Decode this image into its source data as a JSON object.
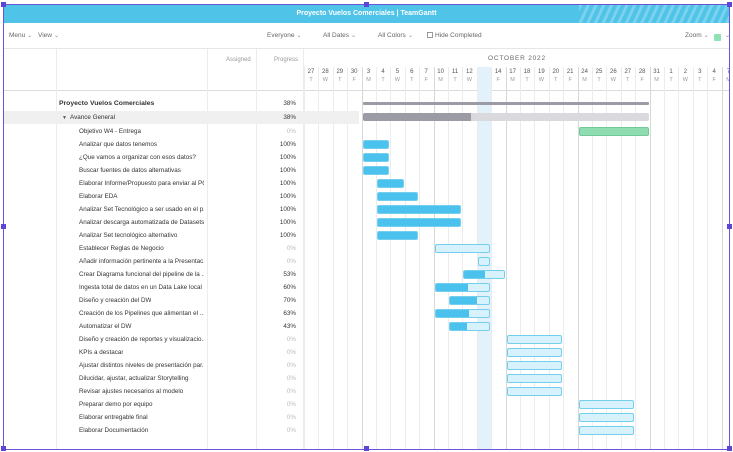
{
  "app": {
    "title": "Proyecto Vuelos Comerciales | TeamGantt"
  },
  "toolbar": {
    "menu": "Menu",
    "view": "View",
    "everyone": "Everyone",
    "all_dates": "All Dates",
    "all_colors": "All Colors",
    "hide_completed": "Hide Completed",
    "zoom": "Zoom",
    "color_swatch": "#8fdcb0"
  },
  "columns": {
    "assigned": "Assigned",
    "progress": "Progress"
  },
  "timeline": {
    "month": "OCTOBER 2022",
    "days": [
      {
        "n": "27",
        "d": "T"
      },
      {
        "n": "28",
        "d": "W"
      },
      {
        "n": "29",
        "d": "T"
      },
      {
        "n": "30",
        "d": "F"
      },
      {
        "n": "3",
        "d": "M"
      },
      {
        "n": "4",
        "d": "T"
      },
      {
        "n": "5",
        "d": "W"
      },
      {
        "n": "6",
        "d": "T"
      },
      {
        "n": "7",
        "d": "F"
      },
      {
        "n": "10",
        "d": "M"
      },
      {
        "n": "11",
        "d": "T"
      },
      {
        "n": "12",
        "d": "W"
      },
      {
        "n": "13",
        "d": "T"
      },
      {
        "n": "14",
        "d": "F"
      },
      {
        "n": "17",
        "d": "M"
      },
      {
        "n": "18",
        "d": "T"
      },
      {
        "n": "19",
        "d": "W"
      },
      {
        "n": "20",
        "d": "T"
      },
      {
        "n": "21",
        "d": "F"
      },
      {
        "n": "24",
        "d": "M"
      },
      {
        "n": "25",
        "d": "T"
      },
      {
        "n": "26",
        "d": "W"
      },
      {
        "n": "27",
        "d": "T"
      },
      {
        "n": "28",
        "d": "F"
      },
      {
        "n": "31",
        "d": "M"
      },
      {
        "n": "1",
        "d": "T"
      },
      {
        "n": "2",
        "d": "W"
      },
      {
        "n": "3",
        "d": "T"
      },
      {
        "n": "4",
        "d": "F"
      },
      {
        "n": "7",
        "d": "M"
      }
    ],
    "today": "13"
  },
  "project": {
    "name": "Proyecto Vuelos Comerciales",
    "pct": "38%",
    "progress": 0.38,
    "start": "3",
    "end": "28"
  },
  "group": {
    "name": "Avance General",
    "pct": "38%",
    "progress": 0.38,
    "start": "3",
    "end": "28"
  },
  "tasks": [
    {
      "name": "Objetivo W4 - Entrega",
      "pct": "0%",
      "progress": 0,
      "bar": "green",
      "start": "24",
      "end": "28"
    },
    {
      "name": "Analizar que datos tenemos",
      "pct": "100%",
      "progress": 1,
      "start": "3",
      "end": "4"
    },
    {
      "name": "¿Que vamos a organizar con esos datos?",
      "pct": "100%",
      "progress": 1,
      "start": "3",
      "end": "4"
    },
    {
      "name": "Buscar fuentes de datos alternativas",
      "pct": "100%",
      "progress": 1,
      "start": "3",
      "end": "4"
    },
    {
      "name": "Elaborar Informe/Propuesto para enviar al PO",
      "pct": "100%",
      "progress": 1,
      "start": "4",
      "end": "5"
    },
    {
      "name": "Elaborar EDA",
      "pct": "100%",
      "progress": 1,
      "start": "4",
      "end": "6"
    },
    {
      "name": "Analizar Set Tecnológico a ser usado en el p...",
      "pct": "100%",
      "progress": 1,
      "start": "4",
      "end": "11"
    },
    {
      "name": "Analizar descarga automatizada de Datasets",
      "pct": "100%",
      "progress": 1,
      "start": "4",
      "end": "11"
    },
    {
      "name": "Analizar Set tecnológico alternativo",
      "pct": "100%",
      "progress": 1,
      "start": "4",
      "end": "6"
    },
    {
      "name": "Establecer Reglas de Negocio",
      "pct": "0%",
      "progress": 0,
      "start": "10",
      "end": "13"
    },
    {
      "name": "Añadir información pertinente a la Presentac...",
      "pct": "0%",
      "progress": 0,
      "start": "13",
      "end": "13"
    },
    {
      "name": "Crear Diagrama funcional del pipeline de la ...",
      "pct": "53%",
      "progress": 0.53,
      "start": "12",
      "end": "14"
    },
    {
      "name": "Ingesta total de datos en un Data Lake local",
      "pct": "60%",
      "progress": 0.6,
      "start": "10",
      "end": "13"
    },
    {
      "name": "Diseño y creación del DW",
      "pct": "70%",
      "progress": 0.7,
      "start": "11",
      "end": "13"
    },
    {
      "name": "Creación de los Pipelines que alimentan el ...",
      "pct": "63%",
      "progress": 0.63,
      "start": "10",
      "end": "13"
    },
    {
      "name": "Automatizar el DW",
      "pct": "43%",
      "progress": 0.43,
      "start": "11",
      "end": "13"
    },
    {
      "name": "Diseño y creación de reportes y visualizacio...",
      "pct": "0%",
      "progress": 0,
      "start": "17",
      "end": "20"
    },
    {
      "name": "KPIs a destacar",
      "pct": "0%",
      "progress": 0,
      "start": "17",
      "end": "20"
    },
    {
      "name": "Ajustar distintos niveles de presentación par...",
      "pct": "0%",
      "progress": 0,
      "start": "17",
      "end": "20"
    },
    {
      "name": "Dilucidar, ajustar, actualizar Storytelling",
      "pct": "0%",
      "progress": 0,
      "start": "17",
      "end": "20"
    },
    {
      "name": "Revisar ajustes necesarios al modelo",
      "pct": "0%",
      "progress": 0,
      "start": "17",
      "end": "20"
    },
    {
      "name": "Preparar demo por equipo",
      "pct": "0%",
      "progress": 0,
      "start": "24",
      "end": "27"
    },
    {
      "name": "Elaborar entregable final",
      "pct": "0%",
      "progress": 0,
      "start": "24",
      "end": "27"
    },
    {
      "name": "Elaborar Documentación",
      "pct": "0%",
      "progress": 0,
      "start": "24",
      "end": "27"
    }
  ]
}
